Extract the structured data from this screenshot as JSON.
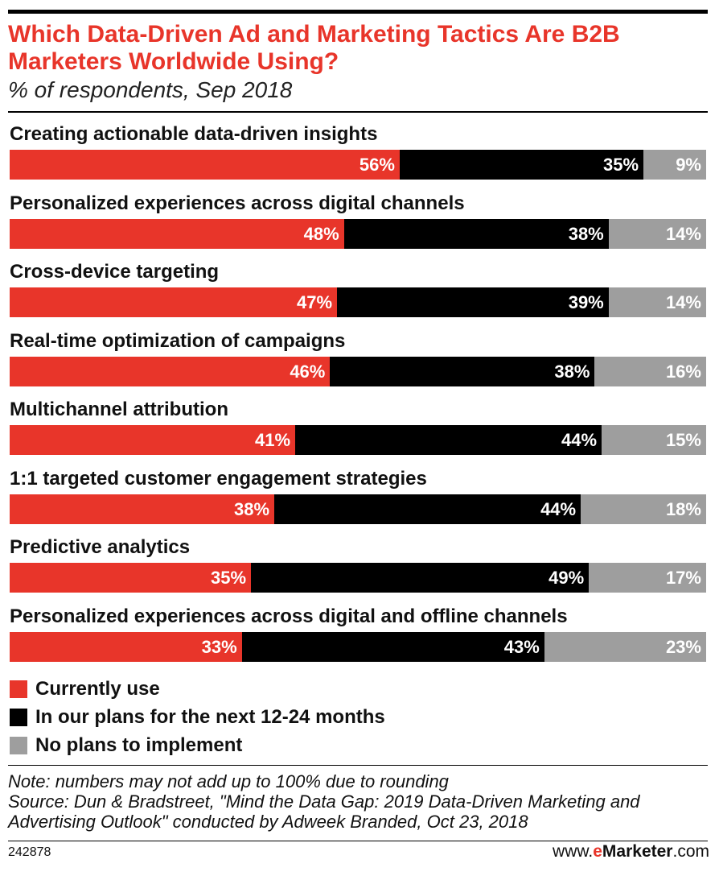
{
  "header": {
    "title": "Which Data-Driven Ad and Marketing Tactics Are B2B Marketers Worldwide Using?",
    "subtitle": "% of respondents, Sep 2018"
  },
  "colors": {
    "currently_use": "#e8352a",
    "plans": "#000000",
    "no_plans": "#9e9e9e"
  },
  "chart_data": {
    "type": "bar",
    "stacked": true,
    "orientation": "horizontal",
    "categories": [
      "Creating actionable data-driven insights",
      "Personalized experiences across digital channels",
      "Cross-device targeting",
      "Real-time optimization of campaigns",
      "Multichannel attribution",
      "1:1 targeted customer engagement strategies",
      "Predictive analytics",
      "Personalized experiences across digital and offline channels"
    ],
    "series": [
      {
        "name": "Currently use",
        "values": [
          56,
          48,
          47,
          46,
          41,
          38,
          35,
          33
        ]
      },
      {
        "name": "In our plans for the next 12-24 months",
        "values": [
          35,
          38,
          39,
          38,
          44,
          44,
          49,
          43
        ]
      },
      {
        "name": "No plans to implement",
        "values": [
          9,
          14,
          14,
          16,
          15,
          18,
          17,
          23
        ]
      }
    ],
    "value_suffix": "%",
    "title": "Which Data-Driven Ad and Marketing Tactics Are B2B Marketers Worldwide Using?",
    "xlabel": "",
    "ylabel": "",
    "legend": "bottom-left"
  },
  "footer": {
    "note": "Note: numbers may not add up to 100% due to rounding",
    "source": "Source: Dun & Bradstreet, \"Mind the Data Gap: 2019 Data-Driven Marketing and Advertising Outlook\" conducted by Adweek Branded, Oct 23, 2018",
    "chart_id": "242878",
    "credit_prefix": "www.",
    "credit_brand_e": "e",
    "credit_brand_rest": "Marketer",
    "credit_suffix": ".com"
  }
}
